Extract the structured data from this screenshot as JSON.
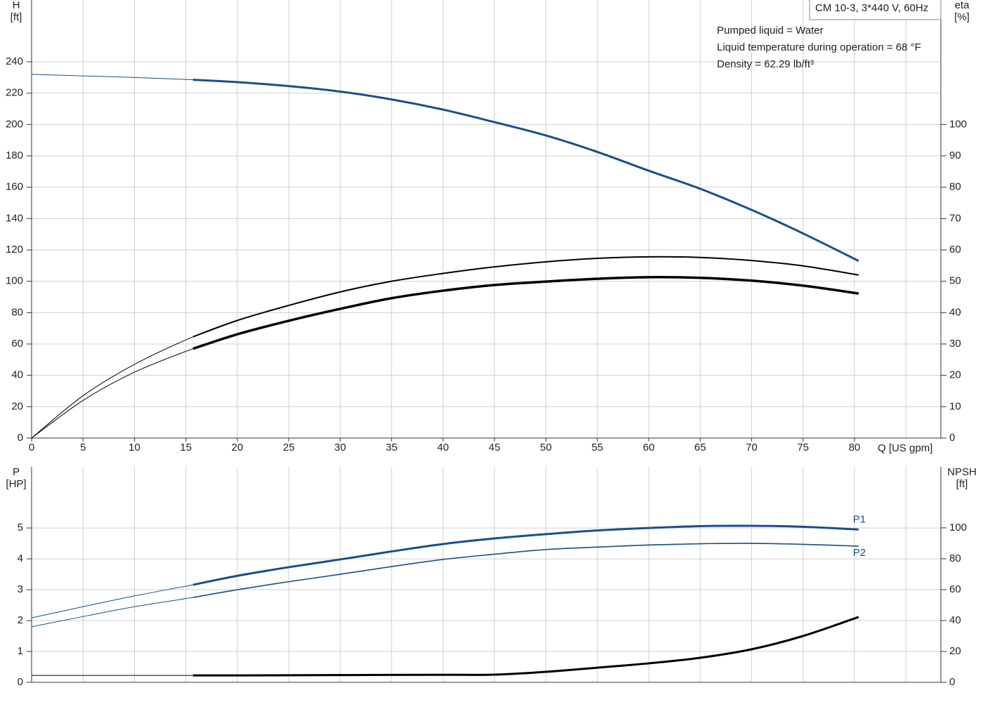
{
  "chart_data": [
    {
      "type": "line",
      "xlabel": "Q [US gpm]",
      "ylabel": "H",
      "yunit": "[ft]",
      "y2label": "eta",
      "y2unit": "[%]",
      "info_box": "CM 10-3, 3*440 V, 60Hz",
      "annotations": [
        "Pumped liquid = Water",
        "Liquid temperature during operation = 68 °F",
        "Density = 62.29 lb/ft³"
      ],
      "x": [
        0,
        5,
        10,
        15.7,
        20,
        25,
        30,
        35,
        40,
        45,
        50,
        55,
        60,
        65,
        70,
        75,
        80.4
      ],
      "operating_from": 15.7,
      "series": [
        {
          "color": "#1a4f8a",
          "line_width": 3,
          "values": [
            232,
            231,
            230,
            228.5,
            227,
            224.5,
            221,
            216,
            209.5,
            201.5,
            193,
            182.5,
            170.5,
            159,
            145.5,
            130.5,
            113
          ]
        },
        {
          "color": "#000000",
          "line_width": 2,
          "axis": "y2",
          "values": [
            0,
            13.5,
            23.5,
            32.3,
            37.5,
            42.3,
            46.6,
            50,
            52.5,
            54.6,
            56.2,
            57.3,
            57.8,
            57.6,
            56.6,
            54.9,
            52
          ]
        },
        {
          "color": "#000000",
          "line_width": 3.5,
          "axis": "y2",
          "values": [
            0,
            12,
            21,
            28.5,
            33.1,
            37.4,
            41.2,
            44.6,
            47,
            48.8,
            49.9,
            50.8,
            51.3,
            51.1,
            50.2,
            48.6,
            46.1
          ]
        }
      ],
      "xlim": [
        0,
        88.4
      ],
      "xticks": [
        0,
        5,
        10,
        15,
        20,
        25,
        30,
        35,
        40,
        45,
        50,
        55,
        60,
        65,
        70,
        75,
        80
      ],
      "xgrid": [
        0,
        5,
        10,
        15,
        20,
        25,
        30,
        35,
        40,
        45,
        50,
        55,
        60,
        65,
        70,
        75,
        80,
        85
      ],
      "ylim": [
        0,
        279.4
      ],
      "yticks": [
        0,
        20,
        40,
        60,
        80,
        100,
        120,
        140,
        160,
        180,
        200,
        220,
        240
      ],
      "y2lim": [
        0,
        139.7
      ],
      "y2ticks": [
        0,
        10,
        20,
        30,
        40,
        50,
        60,
        70,
        80,
        90,
        100
      ],
      "grid": true
    },
    {
      "type": "line",
      "ylabel": "P",
      "yunit": "[HP]",
      "y2label": "NPSH",
      "y2unit": "[ft]",
      "x": [
        0,
        5,
        10,
        15.7,
        20,
        25,
        30,
        35,
        40,
        45,
        50,
        55,
        60,
        65,
        70,
        75,
        80.4
      ],
      "operating_from": 15.7,
      "series": [
        {
          "name": "P1",
          "color": "#1a4f8a",
          "line_width": 3,
          "values": [
            2.09,
            2.45,
            2.8,
            3.16,
            3.45,
            3.73,
            3.98,
            4.24,
            4.48,
            4.66,
            4.8,
            4.92,
            5.0,
            5.06,
            5.07,
            5.04,
            4.95
          ]
        },
        {
          "name": "P2",
          "color": "#1a4f8a",
          "line_width": 1.6,
          "values": [
            1.8,
            2.13,
            2.45,
            2.75,
            3.0,
            3.26,
            3.5,
            3.75,
            3.98,
            4.15,
            4.3,
            4.38,
            4.45,
            4.49,
            4.5,
            4.47,
            4.41
          ]
        },
        {
          "color": "#000000",
          "line_width": 3,
          "axis": "y2",
          "values": [
            4.5,
            4.5,
            4.5,
            4.5,
            4.5,
            4.6,
            4.7,
            4.8,
            4.9,
            5.0,
            6.8,
            9.5,
            12.3,
            15.9,
            21.4,
            30,
            42.3
          ]
        }
      ],
      "xlim": [
        0,
        88.4
      ],
      "xgrid": [
        0,
        5,
        10,
        15,
        20,
        25,
        30,
        35,
        40,
        45,
        50,
        55,
        60,
        65,
        70,
        75,
        80,
        85
      ],
      "ylim": [
        0,
        6.98
      ],
      "yticks": [
        0,
        1,
        2,
        3,
        4,
        5
      ],
      "y2lim": [
        0,
        139.5
      ],
      "y2ticks": [
        0,
        20,
        40,
        60,
        80,
        100
      ],
      "grid": true
    }
  ]
}
